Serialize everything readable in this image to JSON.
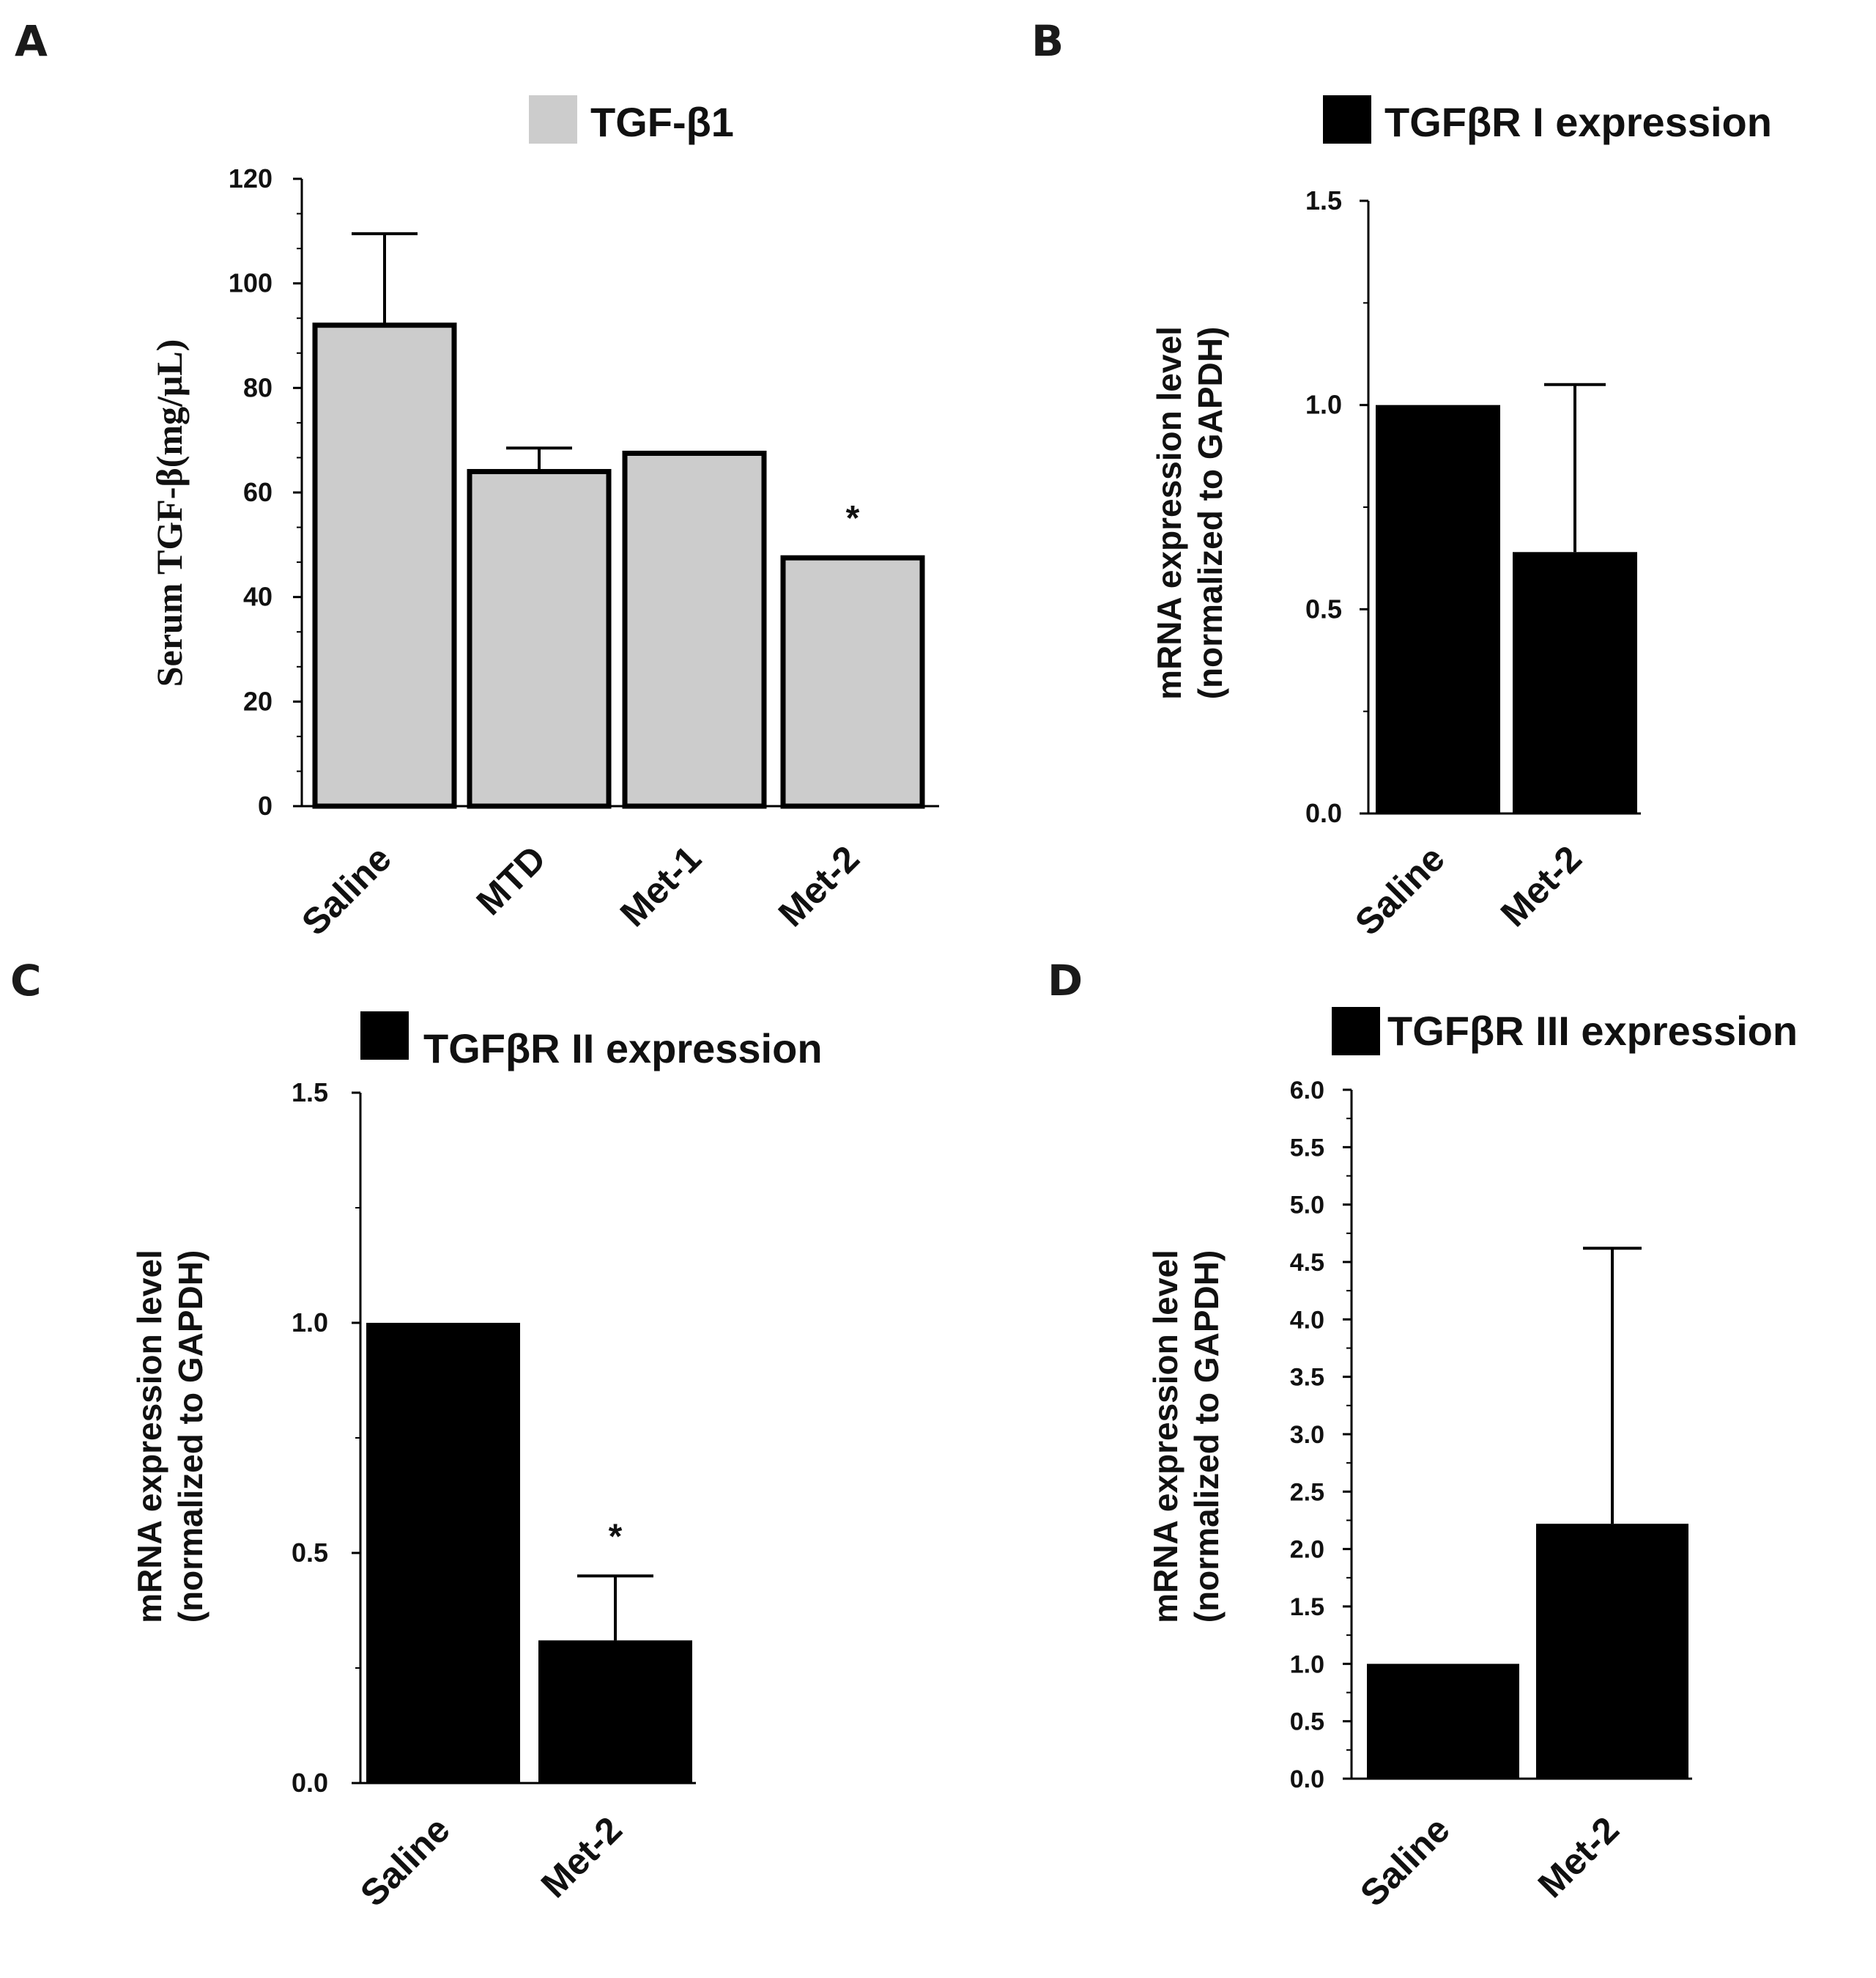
{
  "chart_data": [
    {
      "panel": "A",
      "type": "bar",
      "title": "TGF-β1",
      "legend": [
        {
          "label": "TGF-β1",
          "color": "#cccccc"
        }
      ],
      "categories": [
        "Saline",
        "MTD",
        "Met-1",
        "Met-2"
      ],
      "values": [
        92,
        64,
        67.5,
        47.5
      ],
      "errors": [
        17.5,
        4.5,
        0,
        0
      ],
      "significance": [
        "",
        "",
        "",
        "*"
      ],
      "xlabel": "",
      "ylabel": "Serum TGF-β(mg/μL)",
      "ylim": [
        0,
        120
      ],
      "yticks": [
        0,
        20,
        40,
        60,
        80,
        100,
        120
      ],
      "ytick_labels": [
        "0",
        "20",
        "40",
        "60",
        "80",
        "100",
        "120"
      ],
      "bar_color": "#cccccc"
    },
    {
      "panel": "B",
      "type": "bar",
      "title": "TGFβR I expression",
      "legend": [
        {
          "label": "TGFβR I expression",
          "color": "#000000"
        }
      ],
      "categories": [
        "Saline",
        "Met-2"
      ],
      "values": [
        1.0,
        0.64
      ],
      "errors": [
        0,
        0.41
      ],
      "significance": [
        "",
        ""
      ],
      "xlabel": "",
      "ylabel": [
        "mRNA expression level",
        "(normalized to GAPDH)"
      ],
      "ylim": [
        0,
        1.5
      ],
      "yticks": [
        0,
        0.5,
        1.0,
        1.5
      ],
      "ytick_labels": [
        "0.0",
        "0.5",
        "1.0",
        "1.5"
      ],
      "bar_color": "#000000"
    },
    {
      "panel": "C",
      "type": "bar",
      "title": "TGFβR II expression",
      "legend": [
        {
          "label": "TGFβR II expression",
          "color": "#000000"
        }
      ],
      "categories": [
        "Saline",
        "Met-2"
      ],
      "values": [
        1.0,
        0.31
      ],
      "errors": [
        0,
        0.14
      ],
      "significance": [
        "",
        "*"
      ],
      "xlabel": "",
      "ylabel": [
        "mRNA expression level",
        "(normalized to GAPDH)"
      ],
      "ylim": [
        0,
        1.5
      ],
      "yticks": [
        0,
        0.5,
        1.0,
        1.5
      ],
      "ytick_labels": [
        "0.0",
        "0.5",
        "1.0",
        "1.5"
      ],
      "bar_color": "#000000"
    },
    {
      "panel": "D",
      "type": "bar",
      "title": "TGFβR III expression",
      "legend": [
        {
          "label": "TGFβR III expression",
          "color": "#000000"
        }
      ],
      "categories": [
        "Saline",
        "Met-2"
      ],
      "values": [
        1.0,
        2.22
      ],
      "errors": [
        0,
        2.4
      ],
      "significance": [
        "",
        ""
      ],
      "xlabel": "",
      "ylabel": [
        "mRNA expression level",
        "(normalized to GAPDH)"
      ],
      "ylim": [
        0,
        6
      ],
      "yticks": [
        0,
        0.5,
        1.0,
        1.5,
        2.0,
        2.5,
        3.0,
        3.5,
        4.0,
        4.5,
        5.0,
        5.5,
        6.0
      ],
      "ytick_labels": [
        "0.0",
        "0.5",
        "1.0",
        "1.5",
        "2.0",
        "2.5",
        "3.0",
        "3.5",
        "4.0",
        "4.5",
        "5.0",
        "5.5",
        "6.0"
      ],
      "bar_color": "#000000"
    }
  ]
}
